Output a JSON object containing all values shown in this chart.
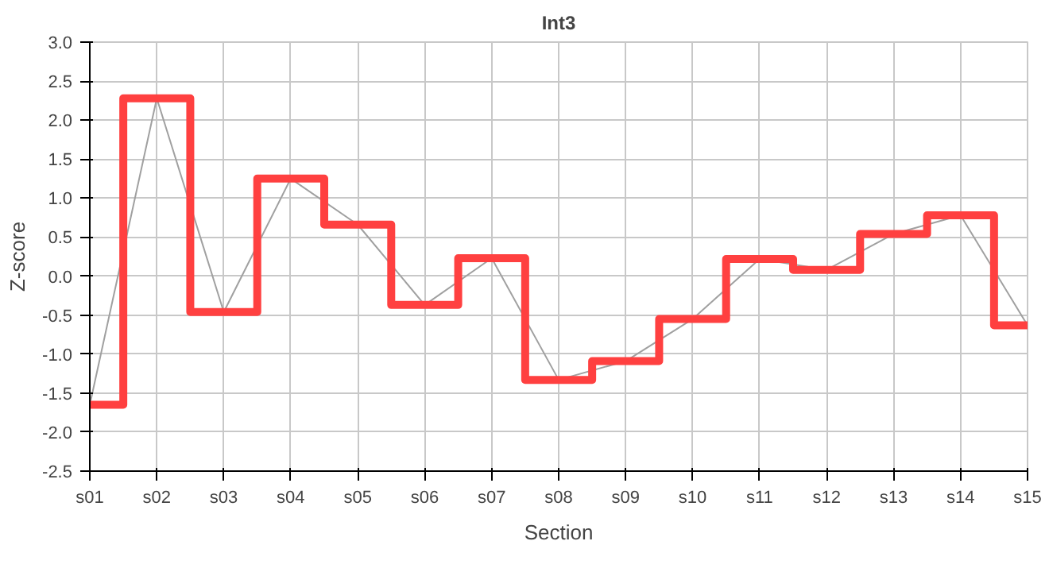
{
  "chart_data": {
    "type": "line",
    "title": "Int3",
    "xlabel": "Section",
    "ylabel": "Z-score",
    "categories": [
      "s01",
      "s02",
      "s03",
      "s04",
      "s05",
      "s06",
      "s07",
      "s08",
      "s09",
      "s10",
      "s11",
      "s12",
      "s13",
      "s14",
      "s15"
    ],
    "series": [
      {
        "color": "#a0a0a0",
        "values": [
          -1.65,
          2.28,
          -0.46,
          1.25,
          0.66,
          -0.37,
          0.23,
          -1.33,
          -1.09,
          -0.55,
          0.22,
          0.08,
          0.54,
          0.78,
          -0.63
        ]
      },
      {
        "type": "step",
        "color": "#ff4040",
        "values": [
          -1.65,
          2.28,
          -0.46,
          1.25,
          0.66,
          -0.37,
          0.23,
          -1.33,
          -1.09,
          -0.55,
          0.22,
          0.08,
          0.54,
          0.78,
          -0.63
        ]
      }
    ],
    "ylim": [
      -2.5,
      3.0
    ],
    "yticks": [
      {
        "value": -2.5,
        "label": "-2.5"
      },
      {
        "value": -2,
        "label": "-2.0"
      },
      {
        "value": -1.5,
        "label": "-1.5"
      },
      {
        "value": -1,
        "label": "-1.0"
      },
      {
        "value": -0.5,
        "label": "-0.5"
      },
      {
        "value": 0,
        "label": "0.0"
      },
      {
        "value": 0.5,
        "label": "0.5"
      },
      {
        "value": 1,
        "label": "1.0"
      },
      {
        "value": 1.5,
        "label": "1.5"
      },
      {
        "value": 2,
        "label": "2.0"
      },
      {
        "value": 2.5,
        "label": "2.5"
      },
      {
        "value": 3,
        "label": "3.0"
      }
    ],
    "grid": true
  }
}
